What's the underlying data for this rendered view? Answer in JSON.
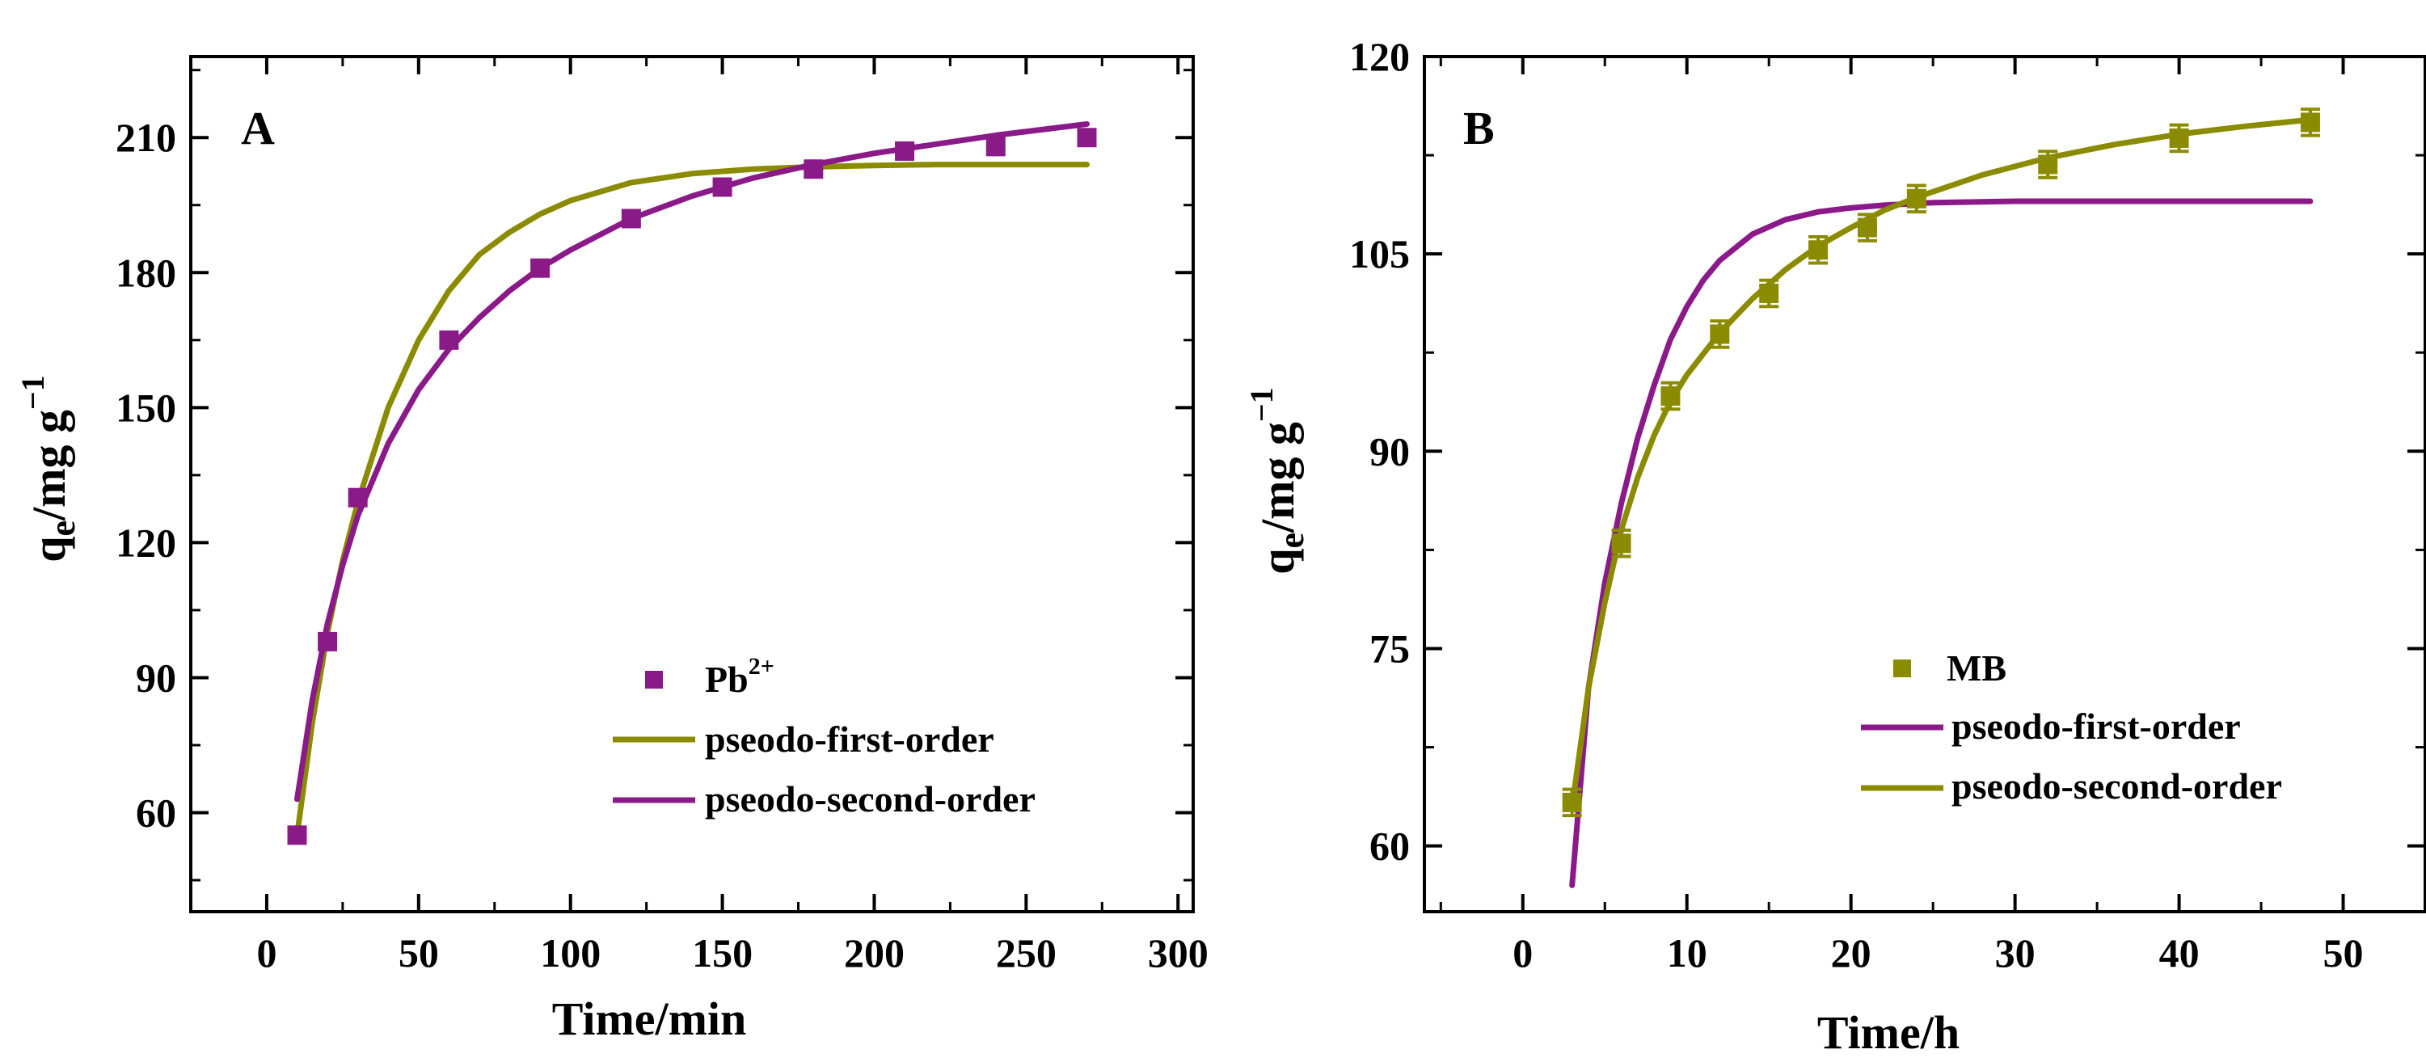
{
  "chart_data": [
    {
      "type": "scatter",
      "panel_label": "A",
      "xlabel": "Time/min",
      "ylabel_parts": {
        "q": "q",
        "sub": "e",
        "unit": "/mg g",
        "sup": "−1"
      },
      "xlim": [
        -25,
        305
      ],
      "ylim": [
        38,
        228
      ],
      "xticks": [
        0,
        50,
        100,
        150,
        200,
        250,
        300
      ],
      "yticks": [
        60,
        90,
        120,
        150,
        180,
        210
      ],
      "x_minor_step": 25,
      "y_minor_step": 15,
      "legend": {
        "position": "lower-right",
        "items": [
          {
            "kind": "marker",
            "base": "Pb",
            "sup": "2+",
            "color": "#8B1A89"
          },
          {
            "kind": "line",
            "text": "pseodo-first-order",
            "color": "#8B8B00"
          },
          {
            "kind": "line",
            "text": "pseodo-second-order",
            "color": "#8B1A89"
          }
        ]
      },
      "series": [
        {
          "name": "Pb2+",
          "style": "marker",
          "color": "#8B1A89",
          "x": [
            10,
            20,
            30,
            60,
            90,
            120,
            150,
            180,
            210,
            240,
            270
          ],
          "y": [
            55,
            98,
            130,
            165,
            181,
            192,
            199,
            203,
            207,
            208,
            210
          ]
        },
        {
          "name": "pseodo-first-order",
          "style": "line",
          "color": "#8B8B00",
          "x": [
            10,
            15,
            20,
            25,
            30,
            40,
            50,
            60,
            70,
            80,
            90,
            100,
            120,
            140,
            160,
            180,
            200,
            220,
            240,
            270
          ],
          "y": [
            55,
            80,
            100,
            116,
            129,
            150,
            165,
            176,
            184,
            189,
            193,
            196,
            200,
            202,
            203,
            203.5,
            203.8,
            204,
            204,
            204
          ]
        },
        {
          "name": "pseodo-second-order",
          "style": "line",
          "color": "#8B1A89",
          "x": [
            10,
            15,
            20,
            25,
            30,
            40,
            50,
            60,
            70,
            80,
            90,
            100,
            120,
            140,
            160,
            180,
            200,
            220,
            240,
            270
          ],
          "y": [
            63,
            85,
            102,
            115,
            126,
            142,
            154,
            163,
            170,
            176,
            181,
            185,
            192,
            197,
            201,
            204,
            206.5,
            208.5,
            210.5,
            213
          ]
        }
      ]
    },
    {
      "type": "scatter",
      "panel_label": "B",
      "xlabel": "Time/h",
      "ylabel_parts": {
        "q": "q",
        "sub": "e",
        "unit": "/mg g",
        "sup": "−1"
      },
      "xlim": [
        -6,
        55
      ],
      "ylim": [
        55,
        120
      ],
      "xticks": [
        0,
        10,
        20,
        30,
        40,
        50
      ],
      "yticks": [
        60,
        75,
        90,
        105,
        120
      ],
      "x_minor_step": 5,
      "y_minor_step": 7.5,
      "legend": {
        "position": "lower-right",
        "items": [
          {
            "kind": "marker",
            "text": "MB",
            "color": "#8B8B00"
          },
          {
            "kind": "line",
            "text": "pseodo-first-order",
            "color": "#8B1A89"
          },
          {
            "kind": "line",
            "text": "pseodo-second-order",
            "color": "#8B8B00"
          }
        ]
      },
      "series": [
        {
          "name": "MB",
          "style": "marker",
          "error_bars": true,
          "color": "#8B8B00",
          "x": [
            3,
            6,
            9,
            12,
            15,
            18,
            21,
            24,
            32,
            40,
            48
          ],
          "y": [
            63.3,
            83,
            94.2,
            98.9,
            102,
            105.3,
            107,
            109.2,
            111.8,
            113.8,
            115
          ],
          "err": [
            1.0,
            1.0,
            1.0,
            1.0,
            1.0,
            1.0,
            1.0,
            1.0,
            1.0,
            1.0,
            1.0
          ]
        },
        {
          "name": "pseodo-first-order",
          "style": "line",
          "color": "#8B1A89",
          "x": [
            3,
            4,
            5,
            6,
            7,
            8,
            9,
            10,
            11,
            12,
            14,
            16,
            18,
            20,
            22,
            25,
            30,
            35,
            40,
            48
          ],
          "y": [
            57,
            72,
            80,
            86,
            91,
            95,
            98.5,
            101,
            103,
            104.5,
            106.5,
            107.6,
            108.2,
            108.5,
            108.7,
            108.9,
            109,
            109,
            109,
            109
          ]
        },
        {
          "name": "pseodo-second-order",
          "style": "line",
          "color": "#8B8B00",
          "x": [
            3,
            4,
            5,
            6,
            7,
            8,
            9,
            10,
            12,
            14,
            16,
            18,
            20,
            22,
            24,
            28,
            32,
            36,
            40,
            44,
            48
          ],
          "y": [
            63,
            72,
            78.5,
            84,
            88,
            91.2,
            93.8,
            95.8,
            99,
            101.6,
            103.8,
            105.6,
            107,
            108.3,
            109.3,
            111,
            112.3,
            113.3,
            114.1,
            114.7,
            115.2
          ]
        }
      ]
    }
  ]
}
